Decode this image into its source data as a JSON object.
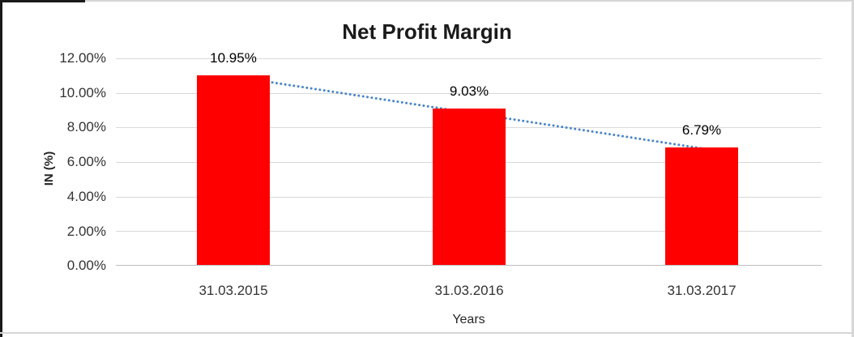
{
  "chart_data": {
    "type": "bar",
    "title": "Net Profit Margin",
    "categories": [
      "31.03.2015",
      "31.03.2016",
      "31.03.2017"
    ],
    "values": [
      10.95,
      9.03,
      6.79
    ],
    "data_labels": [
      "10.95%",
      "9.03%",
      "6.79%"
    ],
    "xlabel": "Years",
    "ylabel": "IN (%)",
    "ylim": [
      0,
      12
    ],
    "ytick_labels": [
      "12.00%",
      "10.00%",
      "8.00%",
      "6.00%",
      "4.00%",
      "2.00%",
      "0.00%"
    ],
    "grid": true,
    "legend": "none",
    "bar_color": "#FF0000",
    "gridline_color": "#D9D9D9",
    "trendline": {
      "type": "linear",
      "style": "dotted",
      "color": "#4A86C8",
      "from_value": 10.95,
      "to_value": 6.79
    }
  }
}
